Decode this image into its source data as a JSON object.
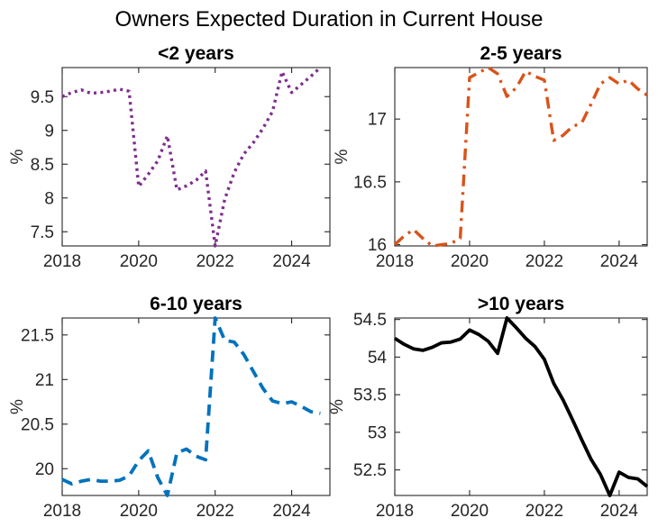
{
  "figure": {
    "title": "Owners Expected Duration in Current House",
    "background_color": "#ffffff",
    "axis_color": "#262626"
  },
  "chart_data": [
    {
      "type": "line",
      "title": "<2 years",
      "ylabel": "%",
      "line_style": "dotted",
      "color": "#7E2F8E",
      "xlim": [
        2018,
        2025
      ],
      "ylim": [
        7.29,
        9.93
      ],
      "xticks": [
        2018,
        2020,
        2022,
        2024
      ],
      "yticks": [
        7.5,
        8,
        8.5,
        9,
        9.5
      ],
      "x": [
        2018,
        2018.25,
        2018.5,
        2018.75,
        2019,
        2019.25,
        2019.5,
        2019.75,
        2020,
        2020.25,
        2020.5,
        2020.75,
        2021,
        2021.25,
        2021.5,
        2021.75,
        2022,
        2022.25,
        2022.5,
        2022.75,
        2023,
        2023.25,
        2023.5,
        2023.75,
        2024,
        2024.25,
        2024.5,
        2024.75
      ],
      "y": [
        9.5,
        9.56,
        9.6,
        9.55,
        9.56,
        9.58,
        9.61,
        9.58,
        8.17,
        8.35,
        8.55,
        8.92,
        8.12,
        8.18,
        8.26,
        8.4,
        7.29,
        7.98,
        8.38,
        8.65,
        8.82,
        9.03,
        9.28,
        9.87,
        9.56,
        9.68,
        9.8,
        9.93
      ]
    },
    {
      "type": "line",
      "title": "2-5 years",
      "ylabel": "%",
      "line_style": "dashdot",
      "color": "#D95319",
      "xlim": [
        2018,
        2024.75
      ],
      "ylim": [
        15.99,
        17.41
      ],
      "xticks": [
        2018,
        2020,
        2022,
        2024
      ],
      "yticks": [
        16,
        16.5,
        17
      ],
      "x": [
        2018,
        2018.25,
        2018.5,
        2018.75,
        2019,
        2019.25,
        2019.5,
        2019.75,
        2020,
        2020.25,
        2020.5,
        2020.75,
        2021,
        2021.25,
        2021.5,
        2021.75,
        2022,
        2022.25,
        2022.5,
        2022.75,
        2023,
        2023.25,
        2023.5,
        2023.75,
        2024,
        2024.25,
        2024.5,
        2024.75
      ],
      "y": [
        16.0,
        16.07,
        16.12,
        16.05,
        15.99,
        16.0,
        16.01,
        16.05,
        17.33,
        17.37,
        17.41,
        17.36,
        17.18,
        17.25,
        17.38,
        17.34,
        17.31,
        16.83,
        16.87,
        16.94,
        16.97,
        17.12,
        17.28,
        17.33,
        17.28,
        17.31,
        17.24,
        17.19
      ]
    },
    {
      "type": "line",
      "title": "6-10 years",
      "ylabel": "%",
      "line_style": "dashed",
      "color": "#0072BD",
      "xlim": [
        2018,
        2025
      ],
      "ylim": [
        19.7,
        21.69
      ],
      "xticks": [
        2018,
        2020,
        2022,
        2024
      ],
      "yticks": [
        20,
        20.5,
        21,
        21.5
      ],
      "x": [
        2018,
        2018.25,
        2018.5,
        2018.75,
        2019,
        2019.25,
        2019.5,
        2019.75,
        2020,
        2020.25,
        2020.5,
        2020.75,
        2021,
        2021.25,
        2021.5,
        2021.75,
        2022,
        2022.25,
        2022.5,
        2022.75,
        2023,
        2023.25,
        2023.5,
        2023.75,
        2024,
        2024.25,
        2024.5,
        2024.75
      ],
      "y": [
        19.88,
        19.83,
        19.86,
        19.88,
        19.86,
        19.86,
        19.87,
        19.92,
        20.09,
        20.2,
        19.9,
        19.7,
        20.18,
        20.22,
        20.14,
        20.1,
        21.69,
        21.44,
        21.42,
        21.28,
        21.09,
        20.9,
        20.76,
        20.73,
        20.75,
        20.7,
        20.64,
        20.62
      ]
    },
    {
      "type": "line",
      "title": ">10 years",
      "ylabel": "%",
      "line_style": "solid",
      "color": "#000000",
      "xlim": [
        2018,
        2024.75
      ],
      "ylim": [
        52.16,
        54.52
      ],
      "xticks": [
        2018,
        2020,
        2022,
        2024
      ],
      "yticks": [
        52.5,
        53,
        53.5,
        54,
        54.5
      ],
      "x": [
        2018,
        2018.25,
        2018.5,
        2018.75,
        2019,
        2019.25,
        2019.5,
        2019.75,
        2020,
        2020.25,
        2020.5,
        2020.75,
        2021,
        2021.25,
        2021.5,
        2021.75,
        2022,
        2022.25,
        2022.5,
        2022.75,
        2023,
        2023.25,
        2023.5,
        2023.75,
        2024,
        2024.25,
        2024.5,
        2024.75
      ],
      "y": [
        54.25,
        54.17,
        54.11,
        54.09,
        54.13,
        54.19,
        54.2,
        54.24,
        54.36,
        54.3,
        54.21,
        54.05,
        54.52,
        54.39,
        54.25,
        54.14,
        53.97,
        53.65,
        53.43,
        53.17,
        52.9,
        52.64,
        52.44,
        52.16,
        52.47,
        52.4,
        52.38,
        52.28
      ]
    }
  ]
}
